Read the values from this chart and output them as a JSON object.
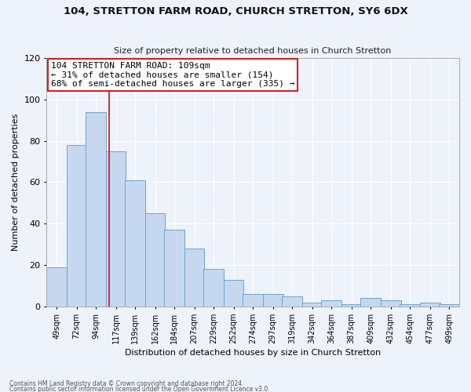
{
  "title": "104, STRETTON FARM ROAD, CHURCH STRETTON, SY6 6DX",
  "subtitle": "Size of property relative to detached houses in Church Stretton",
  "xlabel": "Distribution of detached houses by size in Church Stretton",
  "ylabel": "Number of detached properties",
  "footnote1": "Contains HM Land Registry data © Crown copyright and database right 2024.",
  "footnote2": "Contains public sector information licensed under the Open Government Licence v3.0.",
  "annotation_line1": "104 STRETTON FARM ROAD: 109sqm",
  "annotation_line2": "← 31% of detached houses are smaller (154)",
  "annotation_line3": "68% of semi-detached houses are larger (335) →",
  "categories": [
    "49sqm",
    "72sqm",
    "94sqm",
    "117sqm",
    "139sqm",
    "162sqm",
    "184sqm",
    "207sqm",
    "229sqm",
    "252sqm",
    "274sqm",
    "297sqm",
    "319sqm",
    "342sqm",
    "364sqm",
    "387sqm",
    "409sqm",
    "432sqm",
    "454sqm",
    "477sqm",
    "499sqm"
  ],
  "bar_values": [
    19,
    78,
    94,
    75,
    61,
    45,
    37,
    28,
    18,
    13,
    6,
    6,
    5,
    2,
    3,
    1,
    4,
    3,
    1,
    2,
    1
  ],
  "bar_color": "#c5d8f0",
  "bar_edge_color": "#6ea4cc",
  "vline_x_index": 3,
  "vline_color": "#cc2222",
  "ylim": [
    0,
    120
  ],
  "background_color": "#eef2fa",
  "grid_color": "#ffffff",
  "title_fontsize": 9.5,
  "subtitle_fontsize": 8,
  "ylabel_fontsize": 8,
  "xlabel_fontsize": 8,
  "tick_fontsize": 7,
  "annotation_fontsize": 8
}
